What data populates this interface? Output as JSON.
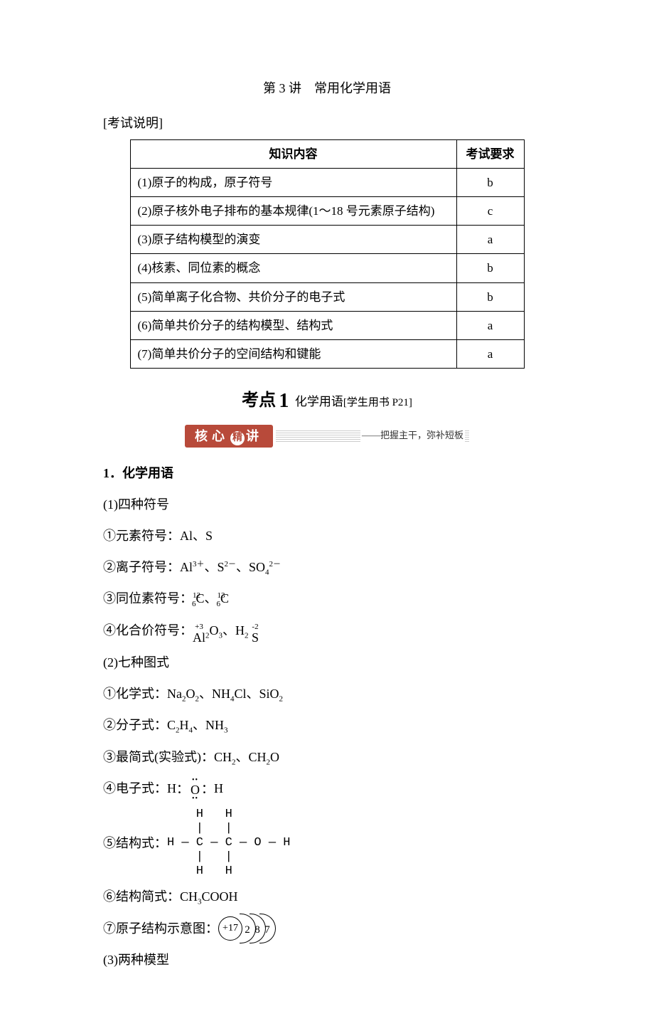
{
  "title": "第 3 讲　常用化学用语",
  "exam_label": "[考试说明]",
  "table": {
    "header_content": "知识内容",
    "header_req": "考试要求",
    "rows": [
      {
        "content": "(1)原子的构成，原子符号",
        "req": "b"
      },
      {
        "content": "(2)原子核外电子排布的基本规律(1～18 号元素原子结构)",
        "req": "c"
      },
      {
        "content": "(3)原子结构模型的演变",
        "req": "a"
      },
      {
        "content": "(4)核素、同位素的概念",
        "req": "b"
      },
      {
        "content": "(5)简单离子化合物、共价分子的电子式",
        "req": "b"
      },
      {
        "content": "(6)简单共价分子的结构模型、结构式",
        "req": "a"
      },
      {
        "content": "(7)简单共价分子的空间结构和键能",
        "req": "a"
      }
    ]
  },
  "kaodian": {
    "label": "考点",
    "num": "1",
    "topic": "化学用语",
    "book_ref": "[学生用书 P21]"
  },
  "banner": {
    "core": "核心",
    "circle": "精",
    "jiang": "讲",
    "tail": "——把握主干，弥补短板"
  },
  "content": {
    "h1": "1．化学用语",
    "s1": "(1)四种符号",
    "s1_1": "①元素符号：Al、S",
    "s1_2_prefix": "②离子符号：Al",
    "s1_2_mid": "、S",
    "s1_2_mid2": "、SO",
    "s1_3_prefix": "③同位素符号：",
    "s1_3_c1": "C、",
    "s1_3_c2": "C",
    "s1_4_prefix": "④化合价符号：",
    "s1_4_al": "Al",
    "s1_4_ox1": "+3",
    "s1_4_mid": "O",
    "s1_4_h2": "、H",
    "s1_4_s": "S",
    "s1_4_ox2": "-2",
    "s2": "(2)七种图式",
    "s2_1_prefix": "①化学式：Na",
    "s2_1_mid1": "O",
    "s2_1_mid2": "、NH",
    "s2_1_mid3": "Cl、SiO",
    "s2_2_prefix": "②分子式：C",
    "s2_2_mid": "H",
    "s2_2_mid2": "、NH",
    "s2_3_prefix": "③最简式(实验式)：CH",
    "s2_3_mid": "、CH",
    "s2_3_suffix": "O",
    "s2_4_prefix": "④电子式：",
    "s2_5_prefix": "⑤结构式：",
    "s2_6_prefix": "⑥结构简式：CH",
    "s2_6_suffix": "COOH",
    "s2_7_prefix": "⑦原子结构示意图：",
    "nucleus": "+17",
    "shells": [
      "2",
      "8",
      "7"
    ],
    "s3": "(3)两种模型"
  },
  "chem": {
    "al3p": "3＋",
    "s2m": "2－",
    "so4_4": "4",
    "so4_2m": "2－",
    "iso12": "12",
    "iso6a": "6",
    "iso13": "13",
    "iso6b": "6",
    "al2o3_2": "2",
    "al2o3_3": "3",
    "h2s_2": "2",
    "na2o2_2a": "2",
    "na2o2_2b": "2",
    "nh4_4": "4",
    "sio2_2": "2",
    "c2h4_2": "2",
    "c2h4_4": "4",
    "nh3_3": "3",
    "ch2_2": "2",
    "ch2o_2": "2",
    "ch3_3": "3"
  },
  "lewis_h2o": {
    "h": "H",
    "o": "O",
    "colon": "："
  },
  "structural": {
    "top": "    H   H",
    "bond1": "    |   |",
    "main": "H — C — C — O — H",
    "bond2": "    |   |",
    "bot": "    H   H"
  },
  "colors": {
    "banner_bg": "#b84a3a",
    "banner_fg": "#ffffff",
    "text": "#000000",
    "bg": "#ffffff"
  }
}
